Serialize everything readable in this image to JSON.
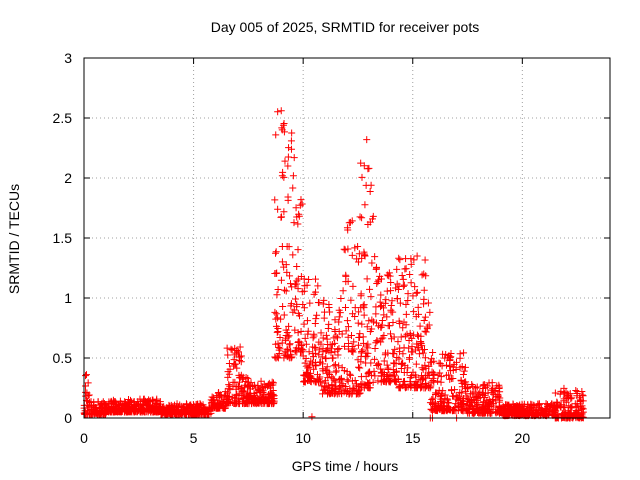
{
  "chart_data": {
    "type": "scatter",
    "title": "Day 005 of 2025, SRMTID for receiver pots",
    "xlabel": "GPS time / hours",
    "ylabel": "SRMTID / TECUs",
    "xlim": [
      0,
      24
    ],
    "ylim": [
      0,
      3
    ],
    "grid": true,
    "marker": "+",
    "marker_color": "#ff0000",
    "x_ticks": [
      0,
      5,
      10,
      15,
      20
    ],
    "x_tick_labels": [
      "0",
      "5",
      "10",
      "15",
      "20"
    ],
    "y_ticks": [
      0,
      0.5,
      1,
      1.5,
      2,
      2.5,
      3
    ],
    "y_tick_labels": [
      "0",
      "0.5",
      "1",
      "1.5",
      "2",
      "2.5",
      "3"
    ],
    "series": [
      {
        "name": "SRMTID",
        "segments": [
          {
            "from": 0.0,
            "to": 0.3,
            "low": 0.03,
            "high": 0.38
          },
          {
            "from": 0.3,
            "to": 1.0,
            "low": 0.03,
            "high": 0.14
          },
          {
            "from": 1.0,
            "to": 3.5,
            "low": 0.05,
            "high": 0.16
          },
          {
            "from": 3.5,
            "to": 5.8,
            "low": 0.03,
            "high": 0.12
          },
          {
            "from": 5.8,
            "to": 6.5,
            "low": 0.08,
            "high": 0.22
          },
          {
            "from": 6.5,
            "to": 7.2,
            "low": 0.12,
            "high": 0.62
          },
          {
            "from": 7.2,
            "to": 8.7,
            "low": 0.12,
            "high": 0.34
          },
          {
            "from": 8.7,
            "to": 9.6,
            "low": 0.5,
            "high": 2.56
          },
          {
            "from": 9.6,
            "to": 10.0,
            "low": 0.55,
            "high": 1.82
          },
          {
            "from": 10.0,
            "to": 10.8,
            "low": 0.3,
            "high": 1.2
          },
          {
            "from": 10.8,
            "to": 11.8,
            "low": 0.2,
            "high": 1.0
          },
          {
            "from": 11.8,
            "to": 12.6,
            "low": 0.2,
            "high": 1.68
          },
          {
            "from": 12.6,
            "to": 13.3,
            "low": 0.25,
            "high": 2.32
          },
          {
            "from": 13.3,
            "to": 14.3,
            "low": 0.3,
            "high": 1.3
          },
          {
            "from": 14.3,
            "to": 15.8,
            "low": 0.25,
            "high": 1.35
          },
          {
            "from": 15.8,
            "to": 17.5,
            "low": 0.06,
            "high": 0.55
          },
          {
            "from": 17.5,
            "to": 19.0,
            "low": 0.04,
            "high": 0.3
          },
          {
            "from": 19.0,
            "to": 21.5,
            "low": 0.02,
            "high": 0.12
          },
          {
            "from": 21.5,
            "to": 22.8,
            "low": 0.0,
            "high": 0.25
          }
        ],
        "points": [
          {
            "x": 0.05,
            "y": 0.06
          },
          {
            "x": 9.0,
            "y": 2.56
          },
          {
            "x": 9.1,
            "y": 2.44
          },
          {
            "x": 9.3,
            "y": 2.1
          },
          {
            "x": 9.9,
            "y": 1.82
          },
          {
            "x": 10.4,
            "y": 0.01
          },
          {
            "x": 12.9,
            "y": 2.32
          },
          {
            "x": 13.0,
            "y": 2.08
          },
          {
            "x": 13.1,
            "y": 1.94
          },
          {
            "x": 13.2,
            "y": 1.68
          },
          {
            "x": 15.2,
            "y": 1.35
          },
          {
            "x": 15.8,
            "y": 0.0
          },
          {
            "x": 15.9,
            "y": 0.0
          },
          {
            "x": 17.0,
            "y": 0.0
          },
          {
            "x": 22.3,
            "y": 0.0
          }
        ]
      }
    ]
  }
}
